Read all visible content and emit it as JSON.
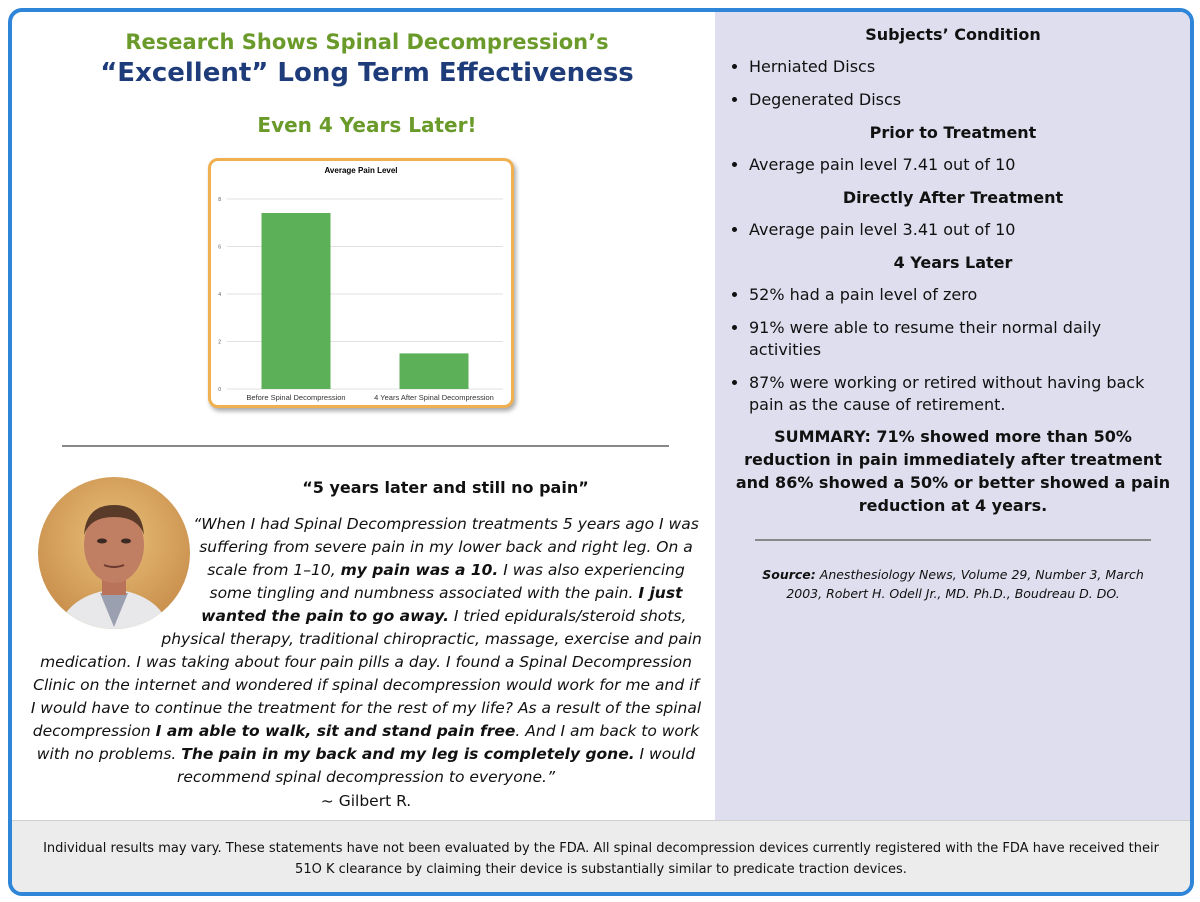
{
  "header": {
    "line1": "Research Shows Spinal Decompression’s",
    "line2": "“Excellent” Long Term Effectiveness",
    "line3": "Even 4 Years Later!"
  },
  "chart_data": {
    "type": "bar",
    "title": "Average Pain Level",
    "categories": [
      "Before Spinal Decompression",
      "4 Years After Spinal Decompression"
    ],
    "values": [
      7.41,
      1.5
    ],
    "color": "#5cb057",
    "ylim": [
      0,
      8
    ],
    "yticks": [
      0,
      2,
      4,
      6,
      8
    ],
    "grid": true
  },
  "testimonial": {
    "heading": "“5 years later and still no pain”",
    "segments": [
      {
        "text": "“When I had Spinal Decompression treatments 5 years ago I was suffering from severe pain in my lower back and right leg. On a scale from 1–10, ",
        "bold": false
      },
      {
        "text": "my pain was a 10.",
        "bold": true
      },
      {
        "text": " I was also experiencing some tingling and numbness associated with the pain. ",
        "bold": false
      },
      {
        "text": "I just wanted the pain to go away.",
        "bold": true
      },
      {
        "text": " I tried epidurals/steroid shots, physical therapy, traditional chiropractic, massage, exercise and pain medication. I was taking about four pain pills a day. I found a Spinal Decompression Clinic on the internet and wondered if spinal decompression would work for me and if I would have to continue the treatment for the rest of my life? As a result of the spinal decompression ",
        "bold": false
      },
      {
        "text": "I am able to walk, sit and stand pain free",
        "bold": true
      },
      {
        "text": ". And I am back to work with no problems. ",
        "bold": false
      },
      {
        "text": "The pain in my back and my leg is completely gone.",
        "bold": true
      },
      {
        "text": " I would recommend spinal decompression to everyone.”",
        "bold": false
      }
    ],
    "author": "~ Gilbert R."
  },
  "sections": [
    {
      "heading": "Subjects’ Condition",
      "items": [
        "Herniated Discs",
        "Degenerated Discs"
      ]
    },
    {
      "heading": "Prior to Treatment",
      "items": [
        "Average pain level 7.41 out of 10"
      ]
    },
    {
      "heading": "Directly After Treatment",
      "items": [
        "Average pain level 3.41 out of 10"
      ]
    },
    {
      "heading": "4 Years Later",
      "items": [
        "52% had a pain level of zero",
        "91% were able to resume their normal daily activities",
        "87% were working or retired without having back pain as the cause of retirement."
      ]
    }
  ],
  "summary": "SUMMARY: 71% showed more than 50% reduction in pain immediately after treatment and 86% showed a 50% or better showed a pain reduction at 4 years.",
  "source": {
    "label": "Source:",
    "text": "Anesthesiology News, Volume 29, Number 3, March 2003, Robert H. Odell Jr., MD. Ph.D., Boudreau D. DO."
  },
  "footer": "Individual results may vary. These statements have not been evaluated by the FDA. All spinal decompression devices currently registered with the FDA have received their 51O K clearance by claiming their device is substantially similar to predicate traction devices."
}
